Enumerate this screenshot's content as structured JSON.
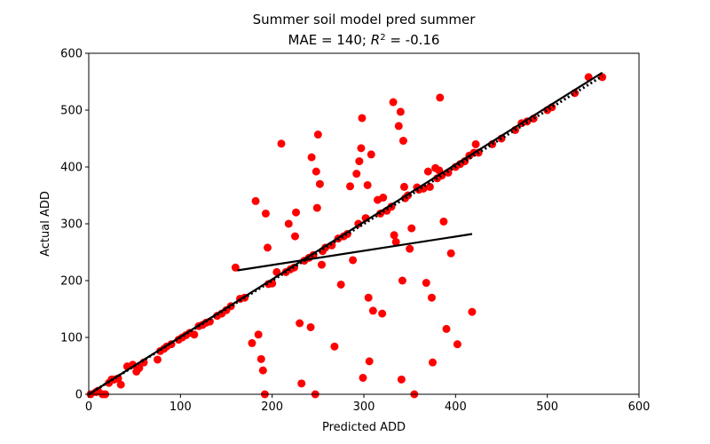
{
  "chart_data": {
    "type": "scatter",
    "title": "Summer soil model pred summer",
    "subtitle_prefix": "MAE = 140; ",
    "subtitle_r2_symbol": "R",
    "subtitle_r2_exp": "2",
    "subtitle_r2_value": " = -0.16",
    "xlabel": "Predicted ADD",
    "ylabel": "Actual ADD",
    "xlim": [
      0,
      600
    ],
    "ylim": [
      0,
      600
    ],
    "xticks": [
      0,
      100,
      200,
      300,
      400,
      500,
      600
    ],
    "yticks": [
      0,
      100,
      200,
      300,
      400,
      500,
      600
    ],
    "grid": false,
    "colors": {
      "points": "#ff0000",
      "lines": "#000000"
    },
    "points": [
      [
        2,
        0
      ],
      [
        8,
        4
      ],
      [
        10,
        6
      ],
      [
        15,
        0
      ],
      [
        18,
        0
      ],
      [
        22,
        20
      ],
      [
        25,
        26
      ],
      [
        28,
        26
      ],
      [
        32,
        28
      ],
      [
        35,
        17
      ],
      [
        42,
        49
      ],
      [
        48,
        52
      ],
      [
        52,
        40
      ],
      [
        55,
        46
      ],
      [
        60,
        56
      ],
      [
        75,
        61
      ],
      [
        78,
        76
      ],
      [
        82,
        80
      ],
      [
        85,
        84
      ],
      [
        90,
        88
      ],
      [
        98,
        96
      ],
      [
        102,
        100
      ],
      [
        106,
        104
      ],
      [
        110,
        108
      ],
      [
        115,
        105
      ],
      [
        120,
        120
      ],
      [
        124,
        122
      ],
      [
        128,
        126
      ],
      [
        132,
        128
      ],
      [
        140,
        138
      ],
      [
        145,
        142
      ],
      [
        150,
        148
      ],
      [
        155,
        155
      ],
      [
        160,
        223
      ],
      [
        165,
        168
      ],
      [
        170,
        170
      ],
      [
        178,
        90
      ],
      [
        182,
        340
      ],
      [
        185,
        105
      ],
      [
        188,
        62
      ],
      [
        190,
        42
      ],
      [
        192,
        0
      ],
      [
        193,
        318
      ],
      [
        195,
        258
      ],
      [
        196,
        194
      ],
      [
        200,
        195
      ],
      [
        205,
        215
      ],
      [
        210,
        441
      ],
      [
        215,
        215
      ],
      [
        218,
        300
      ],
      [
        220,
        220
      ],
      [
        224,
        223
      ],
      [
        225,
        278
      ],
      [
        226,
        320
      ],
      [
        230,
        125
      ],
      [
        232,
        19
      ],
      [
        235,
        235
      ],
      [
        240,
        240
      ],
      [
        242,
        118
      ],
      [
        243,
        417
      ],
      [
        245,
        245
      ],
      [
        247,
        0
      ],
      [
        248,
        392
      ],
      [
        249,
        328
      ],
      [
        250,
        457
      ],
      [
        252,
        370
      ],
      [
        254,
        228
      ],
      [
        255,
        252
      ],
      [
        258,
        258
      ],
      [
        265,
        262
      ],
      [
        268,
        84
      ],
      [
        272,
        274
      ],
      [
        275,
        193
      ],
      [
        278,
        278
      ],
      [
        282,
        282
      ],
      [
        285,
        366
      ],
      [
        288,
        236
      ],
      [
        292,
        388
      ],
      [
        294,
        300
      ],
      [
        295,
        410
      ],
      [
        297,
        433
      ],
      [
        298,
        486
      ],
      [
        299,
        29
      ],
      [
        302,
        310
      ],
      [
        304,
        368
      ],
      [
        305,
        170
      ],
      [
        306,
        58
      ],
      [
        308,
        422
      ],
      [
        310,
        147
      ],
      [
        315,
        342
      ],
      [
        318,
        318
      ],
      [
        320,
        142
      ],
      [
        321,
        346
      ],
      [
        325,
        323
      ],
      [
        330,
        330
      ],
      [
        332,
        514
      ],
      [
        333,
        280
      ],
      [
        335,
        268
      ],
      [
        338,
        472
      ],
      [
        340,
        497
      ],
      [
        341,
        26
      ],
      [
        342,
        200
      ],
      [
        343,
        446
      ],
      [
        344,
        365
      ],
      [
        345,
        345
      ],
      [
        348,
        350
      ],
      [
        350,
        256
      ],
      [
        352,
        292
      ],
      [
        355,
        0
      ],
      [
        358,
        364
      ],
      [
        360,
        360
      ],
      [
        365,
        362
      ],
      [
        368,
        196
      ],
      [
        370,
        392
      ],
      [
        372,
        365
      ],
      [
        374,
        170
      ],
      [
        375,
        56
      ],
      [
        378,
        398
      ],
      [
        380,
        380
      ],
      [
        382,
        394
      ],
      [
        383,
        522
      ],
      [
        385,
        385
      ],
      [
        387,
        304
      ],
      [
        390,
        115
      ],
      [
        392,
        390
      ],
      [
        395,
        248
      ],
      [
        400,
        400
      ],
      [
        402,
        88
      ],
      [
        405,
        405
      ],
      [
        410,
        410
      ],
      [
        415,
        420
      ],
      [
        418,
        145
      ],
      [
        420,
        425
      ],
      [
        422,
        440
      ],
      [
        425,
        425
      ],
      [
        440,
        440
      ],
      [
        450,
        450
      ],
      [
        465,
        465
      ],
      [
        472,
        477
      ],
      [
        478,
        480
      ],
      [
        485,
        485
      ],
      [
        500,
        500
      ],
      [
        505,
        505
      ],
      [
        530,
        530
      ],
      [
        545,
        558
      ],
      [
        560,
        558
      ]
    ],
    "lines": [
      {
        "kind": "identity",
        "style": "dotted",
        "x": [
          0,
          560
        ],
        "y": [
          0,
          560
        ]
      },
      {
        "kind": "fit",
        "style": "solid",
        "x": [
          0,
          560
        ],
        "y": [
          0,
          566
        ]
      },
      {
        "kind": "fit",
        "style": "solid",
        "x": [
          162,
          418
        ],
        "y": [
          218,
          282
        ]
      }
    ]
  }
}
